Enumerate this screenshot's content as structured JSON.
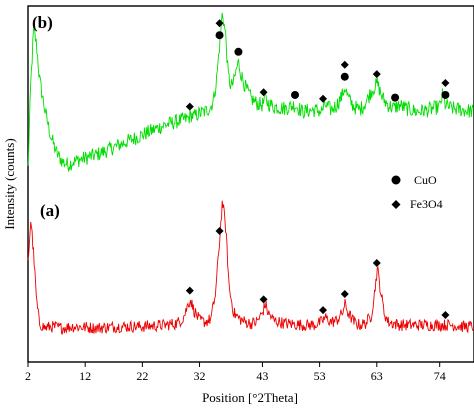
{
  "chart_data": {
    "type": "line",
    "xlabel": "Position [°2Theta]",
    "ylabel": "Intensity (counts)",
    "xlim": [
      2,
      80
    ],
    "x_ticks": [
      2,
      12,
      22,
      32,
      43,
      53,
      63,
      74
    ],
    "panel_labels": [
      "(b)",
      "(a)"
    ],
    "legend": [
      {
        "marker": "circle",
        "label": "CuO"
      },
      {
        "marker": "diamond",
        "label": "Fe3O4"
      }
    ],
    "series": [
      {
        "panel": "(b)",
        "color": "#00dd00",
        "x": [
          2,
          2.5,
          3,
          3.5,
          4,
          5,
          6,
          7,
          8,
          9,
          10,
          12,
          14,
          16,
          18,
          20,
          22,
          24,
          26,
          28,
          29,
          30,
          30.6,
          31,
          32,
          33,
          34,
          34.5,
          35,
          35.5,
          36,
          36.6,
          37,
          37.5,
          38,
          38.5,
          38.8,
          39.3,
          40,
          41,
          42,
          43,
          43.5,
          44,
          45,
          47,
          48.7,
          50,
          52,
          53.3,
          54,
          55,
          56,
          57,
          57.4,
          58,
          59,
          60,
          61,
          62,
          63.1,
          64,
          65,
          66,
          67,
          68,
          70,
          72,
          74,
          74.5,
          75,
          76,
          78,
          80
        ],
        "values": [
          6,
          58,
          90,
          80,
          60,
          40,
          25,
          15,
          10,
          8,
          10,
          12,
          14,
          17,
          20,
          23,
          26,
          29,
          32,
          34,
          35,
          36,
          38,
          37,
          39,
          40,
          43,
          48,
          60,
          80,
          100,
          85,
          62,
          55,
          58,
          66,
          70,
          62,
          55,
          48,
          45,
          44,
          48,
          45,
          43,
          42,
          44,
          40,
          41,
          40,
          44,
          41,
          44,
          50,
          55,
          48,
          43,
          41,
          45,
          52,
          57,
          48,
          44,
          42,
          44,
          42,
          40,
          41,
          43,
          50,
          44,
          42,
          41,
          40
        ]
      },
      {
        "panel": "(a)",
        "color": "#ee0000",
        "x": [
          2,
          2.5,
          3,
          3.5,
          4,
          5,
          6,
          8,
          10,
          14,
          18,
          22,
          26,
          28,
          29,
          29.5,
          30,
          30.4,
          31,
          32,
          33,
          34,
          34.8,
          35.5,
          36,
          36.6,
          37.2,
          38,
          39,
          40,
          41,
          42,
          43,
          43.5,
          44,
          45,
          47,
          50,
          52,
          53.3,
          54,
          55,
          56,
          57,
          57.4,
          58,
          59,
          60,
          61,
          62,
          62.5,
          63.1,
          63.7,
          64.3,
          65,
          67,
          70,
          74,
          76,
          78,
          80
        ],
        "values": [
          55,
          85,
          60,
          30,
          15,
          12,
          13,
          12,
          13,
          12,
          13,
          13,
          14,
          15,
          18,
          22,
          28,
          31,
          24,
          17,
          16,
          18,
          35,
          70,
          97,
          78,
          38,
          22,
          18,
          16,
          15,
          16,
          22,
          28,
          22,
          17,
          15,
          14,
          14,
          16,
          19,
          16,
          17,
          22,
          28,
          22,
          16,
          14,
          15,
          20,
          32,
          52,
          36,
          22,
          16,
          14,
          14,
          14,
          14,
          13,
          13
        ]
      }
    ],
    "markers": {
      "cuo": [
        {
          "panel": "(b)",
          "x": 35.5
        },
        {
          "panel": "(b)",
          "x": 38.8
        },
        {
          "panel": "(b)",
          "x": 48.7
        },
        {
          "panel": "(b)",
          "x": 57.4
        },
        {
          "panel": "(b)",
          "x": 66.2
        },
        {
          "panel": "(b)",
          "x": 75.0
        }
      ],
      "fe3o4": [
        {
          "panel": "(b)",
          "x": 30.3
        },
        {
          "panel": "(b)",
          "x": 35.5
        },
        {
          "panel": "(b)",
          "x": 43.2
        },
        {
          "panel": "(b)",
          "x": 53.6
        },
        {
          "panel": "(b)",
          "x": 57.4
        },
        {
          "panel": "(b)",
          "x": 63.0
        },
        {
          "panel": "(b)",
          "x": 75.0
        },
        {
          "panel": "(a)",
          "x": 30.3
        },
        {
          "panel": "(a)",
          "x": 35.5
        },
        {
          "panel": "(a)",
          "x": 43.2
        },
        {
          "panel": "(a)",
          "x": 53.6
        },
        {
          "panel": "(a)",
          "x": 57.4
        },
        {
          "panel": "(a)",
          "x": 63.0
        },
        {
          "panel": "(a)",
          "x": 75.0
        }
      ]
    }
  }
}
